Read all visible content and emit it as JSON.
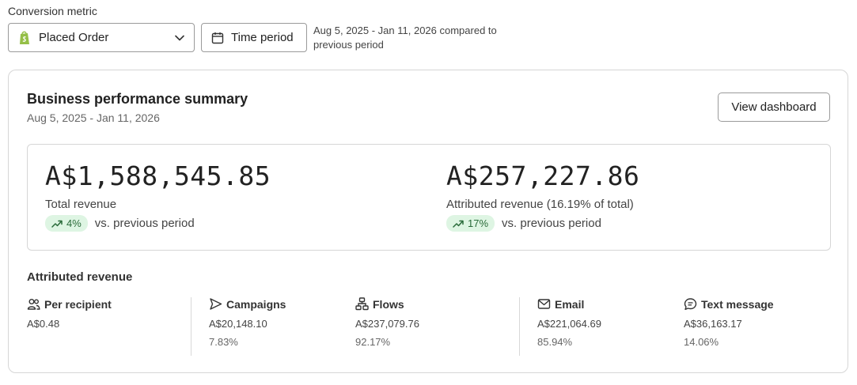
{
  "filters": {
    "metric_label": "Conversion metric",
    "metric_value": "Placed Order",
    "time_period_label": "Time period",
    "range_text": "Aug 5, 2025 - Jan 11, 2026 compared to previous period"
  },
  "summary": {
    "title": "Business performance summary",
    "date_range": "Aug 5, 2025 - Jan 11, 2026",
    "view_dashboard_label": "View dashboard",
    "total": {
      "amount": "A$1,588,545.85",
      "label": "Total revenue",
      "change": "4%",
      "compare_text": "vs. previous period"
    },
    "attributed": {
      "amount": "A$257,227.86",
      "label": "Attributed revenue (16.19% of total)",
      "change": "17%",
      "compare_text": "vs. previous period"
    }
  },
  "attributed_revenue": {
    "title": "Attributed revenue",
    "per_recipient": {
      "label": "Per recipient",
      "value": "A$0.48",
      "icon": "users-icon"
    },
    "campaigns": {
      "label": "Campaigns",
      "value": "A$20,148.10",
      "pct": "7.83%",
      "icon": "send-icon"
    },
    "flows": {
      "label": "Flows",
      "value": "A$237,079.76",
      "pct": "92.17%",
      "icon": "flow-icon"
    },
    "email": {
      "label": "Email",
      "value": "A$221,064.69",
      "pct": "85.94%",
      "icon": "mail-icon"
    },
    "sms": {
      "label": "Text message",
      "value": "A$36,163.17",
      "pct": "14.06%",
      "icon": "message-icon"
    }
  },
  "colors": {
    "badge_bg": "#def5e3",
    "badge_text": "#2a6b3a",
    "shopify_green": "#95bf47"
  }
}
